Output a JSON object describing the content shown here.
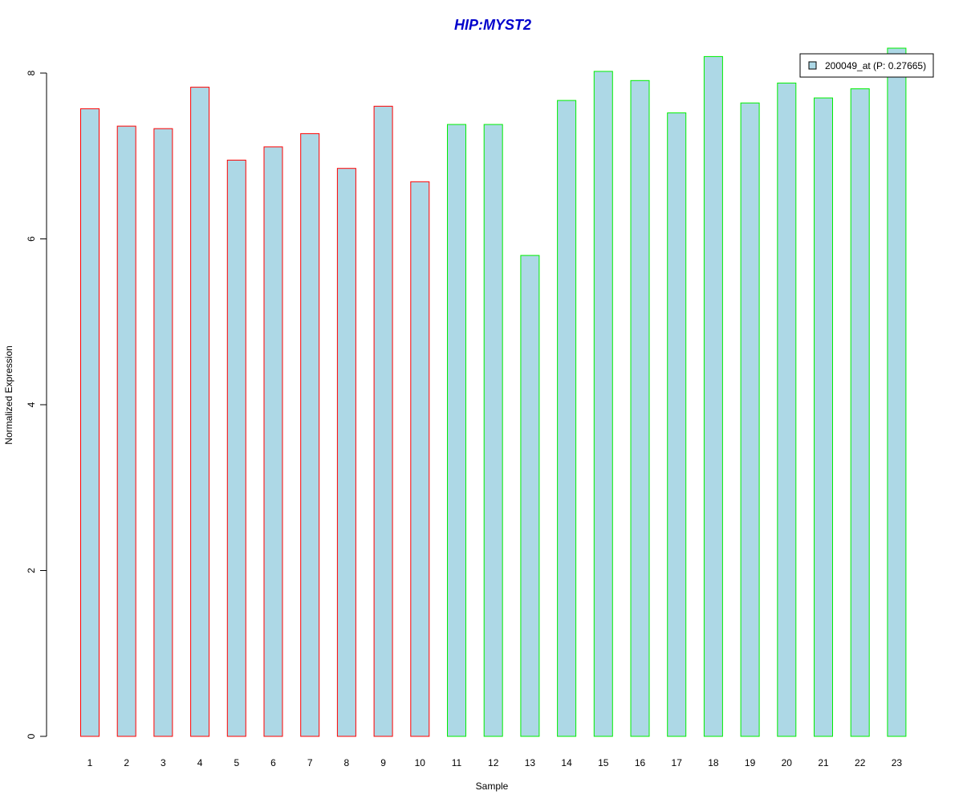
{
  "chart_data": {
    "type": "bar",
    "title": "HIP:MYST2",
    "xlabel": "Sample",
    "ylabel": "Normalized Expression",
    "categories": [
      "1",
      "2",
      "3",
      "4",
      "5",
      "6",
      "7",
      "8",
      "9",
      "10",
      "11",
      "12",
      "13",
      "14",
      "15",
      "16",
      "17",
      "18",
      "19",
      "20",
      "21",
      "22",
      "23"
    ],
    "series": [
      {
        "name": "200049_at (P: 0.27665)",
        "values": [
          7.57,
          7.36,
          7.33,
          7.83,
          6.95,
          7.11,
          7.27,
          6.85,
          7.6,
          6.69,
          7.38,
          7.38,
          5.8,
          7.67,
          8.02,
          7.91,
          7.52,
          8.2,
          7.64,
          7.88,
          7.7,
          7.81,
          8.3
        ]
      }
    ],
    "groups": [
      {
        "samples": [
          1,
          10
        ],
        "outline_color": "#ff0000"
      },
      {
        "samples": [
          11,
          23
        ],
        "outline_color": "#00ee00"
      }
    ],
    "ylim": [
      0,
      8.3
    ],
    "yticks": [
      0,
      2,
      4,
      6,
      8
    ],
    "grid": false,
    "legend_position": "top-right",
    "colors": {
      "bar_fill": "#add8e6",
      "title": "#0000cc",
      "group1_outline": "#ff0000",
      "group2_outline": "#00ee00"
    }
  }
}
